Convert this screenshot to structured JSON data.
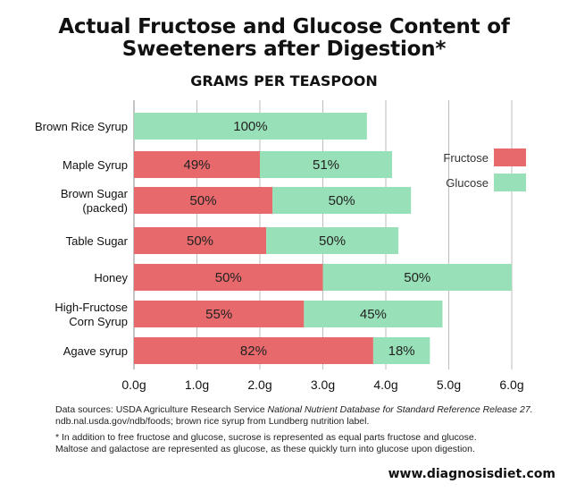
{
  "title_line1": "Actual Fructose and Glucose Content of",
  "title_line2": "Sweeteners after Digestion*",
  "subtitle": "GRAMS PER TEASPOON",
  "chart_data": {
    "type": "bar",
    "orientation": "horizontal",
    "stacked": true,
    "title": "Actual Fructose and Glucose Content of Sweeteners after Digestion*",
    "subtitle": "GRAMS PER TEASPOON",
    "categories": [
      [
        "Brown Rice Syrup"
      ],
      [
        "Maple Syrup"
      ],
      [
        "Brown Sugar",
        "(packed)"
      ],
      [
        "Table Sugar"
      ],
      [
        "Honey"
      ],
      [
        "High-Fructose",
        "Corn Syrup"
      ],
      [
        "Agave syrup"
      ]
    ],
    "series": [
      {
        "name": "Fructose",
        "color": "#e8696b",
        "values": [
          0,
          2.0,
          2.2,
          2.1,
          3.0,
          2.7,
          3.8
        ],
        "labels": [
          "",
          "49%",
          "50%",
          "50%",
          "50%",
          "55%",
          "82%"
        ]
      },
      {
        "name": "Glucose",
        "color": "#98e0b7",
        "values": [
          3.7,
          2.1,
          2.2,
          2.1,
          3.0,
          2.2,
          0.9
        ],
        "labels": [
          "100%",
          "51%",
          "50%",
          "50%",
          "50%",
          "45%",
          "18%"
        ]
      }
    ],
    "xlim": [
      0,
      6
    ],
    "xticks": [
      "0.0g",
      "1.0g",
      "2.0g",
      "3.0g",
      "4.0g",
      "5.0g",
      "6.0g"
    ],
    "xtick_values": [
      0,
      1,
      2,
      3,
      4,
      5,
      6
    ],
    "grid": "vertical",
    "legend_placement": "right"
  },
  "footnotes": {
    "source_prefix": "Data sources: USDA Agriculture Research Service ",
    "source_italic": "National Nutrient Database for Standard Reference Release 27.",
    "source_line2": "ndb.nal.usda.gov/ndb/foods; brown rice syrup from Lundberg nutrition label.",
    "note_line1": "* In addition to free fructose and glucose, sucrose is represented as equal parts fructose and glucose.",
    "note_line2": "Maltose and galactose are represented as glucose, as these quickly turn into glucose upon digestion."
  },
  "website": "www.diagnosisdiet.com"
}
